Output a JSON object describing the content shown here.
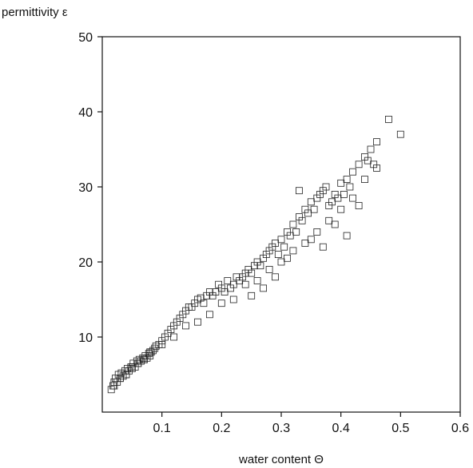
{
  "chart_data": {
    "type": "scatter",
    "title": "",
    "xlabel": "water content Θ",
    "ylabel": "permittivity ε",
    "xlim": [
      0,
      0.6
    ],
    "ylim": [
      0,
      50
    ],
    "xticks": [
      0.1,
      0.2,
      0.3,
      0.4,
      0.5,
      0.6
    ],
    "xtick_labels": [
      "0.1",
      "0.2",
      "0.3",
      "0.4",
      "0.5",
      "0.6"
    ],
    "yticks": [
      10,
      20,
      30,
      40,
      50
    ],
    "ytick_labels": [
      "10",
      "20",
      "30",
      "40",
      "50"
    ],
    "grid": false,
    "legend": "none",
    "marker": "open-square",
    "marker_color": "#222222",
    "series": [
      {
        "x": [
          0.015,
          0.018,
          0.02,
          0.022,
          0.025,
          0.027,
          0.03,
          0.032,
          0.035,
          0.038,
          0.04,
          0.042,
          0.045,
          0.048,
          0.05,
          0.052,
          0.055,
          0.058,
          0.06,
          0.062,
          0.065,
          0.068,
          0.07,
          0.072,
          0.075,
          0.078,
          0.08,
          0.082,
          0.085,
          0.088,
          0.09,
          0.095,
          0.1,
          0.105,
          0.11,
          0.115,
          0.12,
          0.125,
          0.13,
          0.135,
          0.14,
          0.145,
          0.15,
          0.155,
          0.16,
          0.165,
          0.17,
          0.175,
          0.18,
          0.185,
          0.19,
          0.195,
          0.2,
          0.205,
          0.21,
          0.215,
          0.22,
          0.225,
          0.23,
          0.235,
          0.24,
          0.245,
          0.25,
          0.255,
          0.26,
          0.265,
          0.27,
          0.275,
          0.28,
          0.285,
          0.29,
          0.295,
          0.3,
          0.305,
          0.31,
          0.315,
          0.32,
          0.325,
          0.33,
          0.335,
          0.34,
          0.345,
          0.35,
          0.355,
          0.36,
          0.365,
          0.37,
          0.375,
          0.38,
          0.385,
          0.39,
          0.395,
          0.4,
          0.405,
          0.41,
          0.415,
          0.42,
          0.43,
          0.44,
          0.445,
          0.45,
          0.455,
          0.46,
          0.48,
          0.5,
          0.02,
          0.03,
          0.04,
          0.05,
          0.06,
          0.07,
          0.08,
          0.1,
          0.12,
          0.14,
          0.16,
          0.18,
          0.2,
          0.22,
          0.24,
          0.26,
          0.28,
          0.3,
          0.32,
          0.34,
          0.36,
          0.38,
          0.4,
          0.42,
          0.44,
          0.46,
          0.33,
          0.31,
          0.29,
          0.27,
          0.25,
          0.35,
          0.37,
          0.39,
          0.41,
          0.43
        ],
        "y": [
          3.0,
          3.5,
          4.0,
          4.5,
          4.0,
          5.0,
          4.5,
          5.2,
          4.8,
          5.5,
          5.0,
          5.8,
          5.5,
          6.0,
          5.8,
          6.5,
          6.0,
          6.8,
          6.5,
          7.0,
          6.8,
          7.2,
          7.0,
          7.5,
          7.2,
          7.8,
          7.5,
          8.0,
          8.2,
          8.5,
          8.8,
          9.0,
          9.5,
          10.0,
          10.5,
          11.0,
          11.5,
          12.0,
          12.5,
          13.0,
          13.5,
          14.0,
          14.0,
          14.5,
          15.0,
          15.2,
          14.5,
          15.5,
          16.0,
          15.5,
          16.0,
          17.0,
          16.5,
          16.0,
          17.5,
          16.5,
          17.0,
          18.0,
          17.5,
          18.0,
          18.5,
          19.0,
          18.5,
          19.5,
          20.0,
          19.5,
          20.5,
          21.0,
          21.5,
          22.0,
          22.5,
          21.0,
          23.0,
          22.0,
          24.0,
          23.5,
          25.0,
          24.0,
          26.0,
          25.5,
          27.0,
          26.5,
          28.0,
          27.0,
          28.5,
          29.0,
          29.5,
          30.0,
          27.5,
          28.0,
          29.0,
          28.5,
          30.5,
          29.0,
          31.0,
          30.0,
          32.0,
          33.0,
          34.0,
          33.5,
          35.0,
          33.0,
          36.0,
          39.0,
          37.0,
          3.5,
          4.5,
          5.0,
          6.0,
          6.5,
          7.0,
          8.0,
          9.0,
          10.0,
          11.5,
          12.0,
          13.0,
          14.5,
          15.0,
          17.0,
          17.5,
          19.0,
          20.0,
          21.5,
          22.5,
          24.0,
          25.5,
          27.0,
          28.5,
          31.0,
          32.5,
          29.5,
          20.5,
          18.0,
          16.5,
          15.5,
          23.0,
          22.0,
          25.0,
          23.5,
          27.5
        ]
      }
    ]
  }
}
